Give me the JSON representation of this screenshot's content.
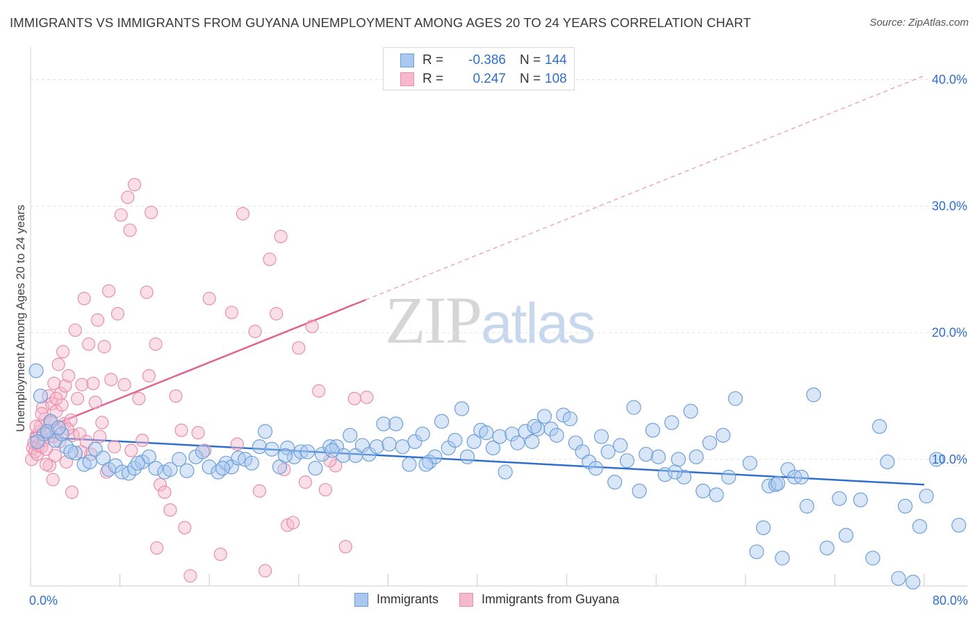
{
  "title": "IMMIGRANTS VS IMMIGRANTS FROM GUYANA UNEMPLOYMENT AMONG AGES 20 TO 24 YEARS CORRELATION CHART",
  "source": "Source: ZipAtlas.com",
  "watermark": {
    "zip": "ZIP",
    "atlas": "atlas"
  },
  "legend_top": [
    {
      "r_label": "R =",
      "r_value": "-0.386",
      "n_label": "N =",
      "n_value": "144"
    },
    {
      "r_label": "R =",
      "r_value": "0.247",
      "n_label": "N =",
      "n_value": "108"
    }
  ],
  "legend_bottom": [
    "Immigrants",
    "Immigrants from Guyana"
  ],
  "colors": {
    "immigrants_fill": "#a9c8ef",
    "immigrants_stroke": "#6c9fd9",
    "immigrants_line": "#2f6fcc",
    "guyana_fill": "#f6b8cb",
    "guyana_stroke": "#e88ea9",
    "guyana_line": "#e0628e",
    "tick_label": "#2e6fce",
    "grid": "#e3e3e3"
  },
  "chart_data": {
    "type": "scatter",
    "title": "IMMIGRANTS VS IMMIGRANTS FROM GUYANA UNEMPLOYMENT AMONG AGES 20 TO 24 YEARS CORRELATION CHART",
    "xlabel": "",
    "ylabel": "Unemployment Among Ages 20 to 24 years",
    "xlim": [
      0,
      80
    ],
    "ylim": [
      0,
      42
    ],
    "x_tick_labels": [
      "0.0%",
      "80.0%"
    ],
    "y_ticks": [
      10,
      20,
      30,
      40
    ],
    "y_tick_labels": [
      "10.0%",
      "20.0%",
      "30.0%",
      "40.0%"
    ],
    "grid": true,
    "legend_position": "top-center",
    "series": [
      {
        "name": "Immigrants",
        "R": -0.386,
        "N": 144,
        "trend": {
          "x": [
            0,
            80
          ],
          "y": [
            11.8,
            8.0
          ]
        },
        "points": [
          [
            0.5,
            17.0
          ],
          [
            0.9,
            15.0
          ],
          [
            1.2,
            12.0
          ],
          [
            1.8,
            13.0
          ],
          [
            2.2,
            11.5
          ],
          [
            2.8,
            12.0
          ],
          [
            3.2,
            11.0
          ],
          [
            4.0,
            10.5
          ],
          [
            4.8,
            9.6
          ],
          [
            5.3,
            9.8
          ],
          [
            5.8,
            10.8
          ],
          [
            6.5,
            10.1
          ],
          [
            7.0,
            9.2
          ],
          [
            7.6,
            9.5
          ],
          [
            8.2,
            9.0
          ],
          [
            8.8,
            8.9
          ],
          [
            9.3,
            9.3
          ],
          [
            10.0,
            9.8
          ],
          [
            10.6,
            10.2
          ],
          [
            11.2,
            9.3
          ],
          [
            12.0,
            9.0
          ],
          [
            12.5,
            9.2
          ],
          [
            13.3,
            10.0
          ],
          [
            14.0,
            9.1
          ],
          [
            14.8,
            10.2
          ],
          [
            15.4,
            10.6
          ],
          [
            16.0,
            9.4
          ],
          [
            16.8,
            9.0
          ],
          [
            17.5,
            9.7
          ],
          [
            18.0,
            9.4
          ],
          [
            18.6,
            10.1
          ],
          [
            19.2,
            10.0
          ],
          [
            19.8,
            9.7
          ],
          [
            20.5,
            11.0
          ],
          [
            21.0,
            12.2
          ],
          [
            21.6,
            10.8
          ],
          [
            22.3,
            9.4
          ],
          [
            23.0,
            10.9
          ],
          [
            23.6,
            10.2
          ],
          [
            24.2,
            10.6
          ],
          [
            24.8,
            10.6
          ],
          [
            25.5,
            9.3
          ],
          [
            26.1,
            10.4
          ],
          [
            26.8,
            11.0
          ],
          [
            27.4,
            11.0
          ],
          [
            28.0,
            10.3
          ],
          [
            28.6,
            11.9
          ],
          [
            29.1,
            10.3
          ],
          [
            29.7,
            11.1
          ],
          [
            30.3,
            10.4
          ],
          [
            31.0,
            11.0
          ],
          [
            31.6,
            12.8
          ],
          [
            32.1,
            11.2
          ],
          [
            32.7,
            12.8
          ],
          [
            33.3,
            11.0
          ],
          [
            33.9,
            9.6
          ],
          [
            34.4,
            11.4
          ],
          [
            35.1,
            12.0
          ],
          [
            35.7,
            9.8
          ],
          [
            36.2,
            10.2
          ],
          [
            36.8,
            13.0
          ],
          [
            37.4,
            10.9
          ],
          [
            38.0,
            11.5
          ],
          [
            38.6,
            14.0
          ],
          [
            39.1,
            10.2
          ],
          [
            39.7,
            11.4
          ],
          [
            40.3,
            12.3
          ],
          [
            40.8,
            12.1
          ],
          [
            41.4,
            10.9
          ],
          [
            42.0,
            11.8
          ],
          [
            42.5,
            9.0
          ],
          [
            43.1,
            12.0
          ],
          [
            43.6,
            11.3
          ],
          [
            44.3,
            12.2
          ],
          [
            44.9,
            11.4
          ],
          [
            45.4,
            12.4
          ],
          [
            46.0,
            13.4
          ],
          [
            46.6,
            12.4
          ],
          [
            47.1,
            11.9
          ],
          [
            47.7,
            13.5
          ],
          [
            48.3,
            13.2
          ],
          [
            48.8,
            11.3
          ],
          [
            49.4,
            10.6
          ],
          [
            50.0,
            9.8
          ],
          [
            50.6,
            9.3
          ],
          [
            51.1,
            11.8
          ],
          [
            51.7,
            10.6
          ],
          [
            52.3,
            8.2
          ],
          [
            52.8,
            11.1
          ],
          [
            53.4,
            9.9
          ],
          [
            54.0,
            14.1
          ],
          [
            54.5,
            7.5
          ],
          [
            55.1,
            10.4
          ],
          [
            55.7,
            12.3
          ],
          [
            56.2,
            10.2
          ],
          [
            56.8,
            8.8
          ],
          [
            57.4,
            12.9
          ],
          [
            58.0,
            10.0
          ],
          [
            58.5,
            8.6
          ],
          [
            59.1,
            13.8
          ],
          [
            59.6,
            10.2
          ],
          [
            60.2,
            7.5
          ],
          [
            60.8,
            11.3
          ],
          [
            61.4,
            7.2
          ],
          [
            62.0,
            11.9
          ],
          [
            62.5,
            8.6
          ],
          [
            63.1,
            14.8
          ],
          [
            64.4,
            9.7
          ],
          [
            65.0,
            2.7
          ],
          [
            65.6,
            4.6
          ],
          [
            66.1,
            7.9
          ],
          [
            66.7,
            8.0
          ],
          [
            67.3,
            2.2
          ],
          [
            67.8,
            9.2
          ],
          [
            68.4,
            8.6
          ],
          [
            69.0,
            8.6
          ],
          [
            69.5,
            6.3
          ],
          [
            70.1,
            15.1
          ],
          [
            71.3,
            3.0
          ],
          [
            72.4,
            6.9
          ],
          [
            73.0,
            4.0
          ],
          [
            74.3,
            6.8
          ],
          [
            75.4,
            2.2
          ],
          [
            76.0,
            12.6
          ],
          [
            76.7,
            9.8
          ],
          [
            77.7,
            0.6
          ],
          [
            78.3,
            6.3
          ],
          [
            79.0,
            0.3
          ],
          [
            79.6,
            4.7
          ],
          [
            80.2,
            7.1
          ],
          [
            81.1,
            10.0
          ],
          [
            83.1,
            4.8
          ],
          [
            0.6,
            11.4
          ],
          [
            1.5,
            12.2
          ],
          [
            2.5,
            12.5
          ],
          [
            3.6,
            10.6
          ],
          [
            9.6,
            9.7
          ],
          [
            17.2,
            9.3
          ],
          [
            22.8,
            10.3
          ],
          [
            27.0,
            10.7
          ],
          [
            35.4,
            9.6
          ],
          [
            45.1,
            12.6
          ],
          [
            57.7,
            9.0
          ],
          [
            66.9,
            8.1
          ]
        ]
      },
      {
        "name": "Immigrants from Guyana",
        "R": 0.247,
        "N": 108,
        "trend": {
          "x": [
            0,
            30
          ],
          "y": [
            12.0,
            22.6
          ]
        },
        "trend_dashed": {
          "x": [
            30,
            80
          ],
          "y": [
            22.6,
            40.3
          ]
        },
        "points": [
          [
            0.1,
            10.0
          ],
          [
            0.2,
            10.9
          ],
          [
            0.3,
            11.3
          ],
          [
            0.4,
            10.6
          ],
          [
            0.5,
            11.8
          ],
          [
            0.6,
            10.4
          ],
          [
            0.7,
            11.1
          ],
          [
            0.8,
            12.2
          ],
          [
            0.9,
            12.6
          ],
          [
            1.0,
            11.0
          ],
          [
            1.1,
            14.1
          ],
          [
            1.2,
            11.5
          ],
          [
            1.3,
            13.2
          ],
          [
            1.4,
            10.8
          ],
          [
            1.5,
            12.0
          ],
          [
            1.6,
            15.0
          ],
          [
            1.7,
            9.5
          ],
          [
            1.8,
            12.9
          ],
          [
            1.9,
            14.4
          ],
          [
            2.0,
            11.8
          ],
          [
            2.1,
            16.0
          ],
          [
            2.2,
            10.3
          ],
          [
            2.3,
            13.8
          ],
          [
            2.4,
            12.3
          ],
          [
            2.5,
            17.5
          ],
          [
            2.6,
            11.4
          ],
          [
            2.7,
            15.2
          ],
          [
            2.8,
            14.3
          ],
          [
            2.9,
            18.5
          ],
          [
            3.0,
            12.8
          ],
          [
            3.1,
            15.8
          ],
          [
            3.2,
            9.8
          ],
          [
            3.4,
            16.6
          ],
          [
            3.6,
            13.1
          ],
          [
            3.8,
            11.9
          ],
          [
            4.0,
            20.2
          ],
          [
            4.2,
            14.8
          ],
          [
            4.4,
            12.0
          ],
          [
            4.6,
            15.9
          ],
          [
            4.8,
            22.7
          ],
          [
            5.0,
            11.4
          ],
          [
            5.2,
            19.1
          ],
          [
            5.4,
            10.4
          ],
          [
            5.6,
            16.0
          ],
          [
            5.8,
            14.5
          ],
          [
            6.0,
            21.0
          ],
          [
            6.2,
            11.8
          ],
          [
            6.4,
            12.9
          ],
          [
            6.6,
            18.9
          ],
          [
            7.0,
            23.3
          ],
          [
            7.2,
            16.3
          ],
          [
            7.5,
            11.0
          ],
          [
            7.8,
            21.5
          ],
          [
            8.1,
            29.3
          ],
          [
            8.4,
            15.9
          ],
          [
            8.7,
            30.7
          ],
          [
            9.0,
            10.7
          ],
          [
            9.3,
            31.7
          ],
          [
            9.7,
            14.8
          ],
          [
            10.0,
            11.5
          ],
          [
            10.4,
            23.2
          ],
          [
            10.8,
            29.5
          ],
          [
            11.2,
            19.1
          ],
          [
            11.6,
            8.0
          ],
          [
            12.0,
            7.4
          ],
          [
            12.5,
            6.0
          ],
          [
            13.0,
            15.0
          ],
          [
            13.8,
            4.6
          ],
          [
            14.3,
            0.8
          ],
          [
            15.0,
            12.1
          ],
          [
            16.0,
            22.7
          ],
          [
            17.0,
            2.5
          ],
          [
            18.0,
            21.6
          ],
          [
            19.0,
            29.4
          ],
          [
            20.1,
            20.1
          ],
          [
            20.5,
            7.5
          ],
          [
            21.0,
            1.2
          ],
          [
            21.4,
            25.8
          ],
          [
            22.0,
            21.5
          ],
          [
            22.4,
            27.6
          ],
          [
            23.0,
            4.8
          ],
          [
            23.5,
            5.0
          ],
          [
            24.0,
            18.8
          ],
          [
            24.6,
            8.2
          ],
          [
            25.2,
            20.5
          ],
          [
            25.8,
            15.4
          ],
          [
            26.4,
            7.6
          ],
          [
            27.3,
            9.5
          ],
          [
            28.2,
            3.1
          ],
          [
            29.0,
            14.8
          ],
          [
            30.1,
            14.9
          ],
          [
            2.3,
            14.8
          ],
          [
            3.3,
            12.4
          ],
          [
            4.5,
            10.6
          ],
          [
            6.8,
            9.0
          ],
          [
            8.9,
            28.1
          ],
          [
            10.6,
            16.6
          ],
          [
            11.3,
            3.0
          ],
          [
            13.5,
            12.3
          ],
          [
            15.6,
            10.7
          ],
          [
            18.5,
            11.2
          ],
          [
            22.7,
            9.2
          ],
          [
            26.8,
            9.9
          ],
          [
            0.5,
            12.6
          ],
          [
            1.0,
            13.6
          ],
          [
            1.4,
            9.6
          ],
          [
            2.0,
            8.4
          ],
          [
            3.7,
            7.4
          ]
        ]
      }
    ]
  }
}
